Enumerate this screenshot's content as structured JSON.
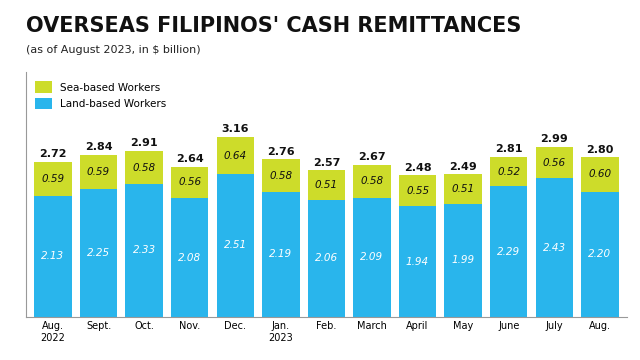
{
  "chart_data": {
    "type": "bar",
    "title": "OVERSEAS FILIPINOS' CASH REMITTANCES",
    "subtitle": "(as of August 2023, in $ billion)",
    "categories": [
      "Aug.\n2022",
      "Sept.",
      "Oct.",
      "Nov.",
      "Dec.",
      "Jan.\n2023",
      "Feb.",
      "March",
      "April",
      "May",
      "June",
      "July",
      "Aug."
    ],
    "stacked": true,
    "data_labels": true,
    "legend": "upper left",
    "tick_labels": "x",
    "ylim": [
      0,
      4.3
    ],
    "yticks": [],
    "series": [
      {
        "name": "Land-based Workers",
        "color": "#29b5ec",
        "values": [
          2.13,
          2.25,
          2.33,
          2.08,
          2.51,
          2.19,
          2.06,
          2.09,
          1.94,
          1.99,
          2.29,
          2.43,
          2.2
        ],
        "value_labels": [
          "2.13",
          "2.25",
          "2.33",
          "2.08",
          "2.51",
          "2.19",
          "2.06",
          "2.09",
          "1.94",
          "1.99",
          "2.29",
          "2.43",
          "2.20"
        ]
      },
      {
        "name": "Sea-based Workers",
        "color": "#cddc2a",
        "values": [
          0.59,
          0.59,
          0.58,
          0.56,
          0.64,
          0.58,
          0.51,
          0.58,
          0.55,
          0.51,
          0.52,
          0.56,
          0.6
        ],
        "value_labels": [
          "0.59",
          "0.59",
          "0.58",
          "0.56",
          "0.64",
          "0.58",
          "0.51",
          "0.58",
          "0.55",
          "0.51",
          "0.52",
          "0.56",
          "0.60"
        ]
      }
    ],
    "totals": [
      2.72,
      2.84,
      2.91,
      2.64,
      3.16,
      2.76,
      2.57,
      2.67,
      2.48,
      2.49,
      2.81,
      2.99,
      2.8
    ],
    "total_labels": [
      "2.72",
      "2.84",
      "2.91",
      "2.64",
      "3.16",
      "2.76",
      "2.57",
      "2.67",
      "2.48",
      "2.49",
      "2.81",
      "2.99",
      "2.80"
    ]
  }
}
